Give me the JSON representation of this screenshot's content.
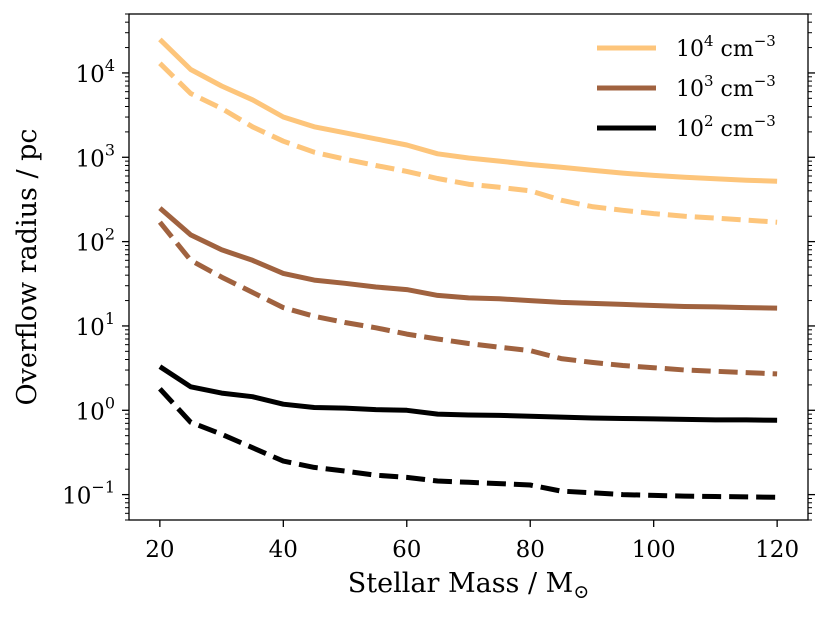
{
  "chart_data": {
    "type": "line",
    "title": "",
    "xlabel": "Stellar Mass / M",
    "xlabel_sub": "⊙",
    "ylabel": "Overflow radius / pc",
    "yscale": "log",
    "xlim": [
      15,
      125
    ],
    "ylim": [
      0.05,
      50000
    ],
    "xticks": [
      20,
      40,
      60,
      80,
      100,
      120
    ],
    "xtick_labels": [
      "20",
      "40",
      "60",
      "80",
      "100",
      "120"
    ],
    "yticks": [
      {
        "value": 0.1,
        "base": "10",
        "exp": "−1"
      },
      {
        "value": 1,
        "base": "10",
        "exp": "0"
      },
      {
        "value": 10,
        "base": "10",
        "exp": "1"
      },
      {
        "value": 100,
        "base": "10",
        "exp": "2"
      },
      {
        "value": 1000,
        "base": "10",
        "exp": "3"
      },
      {
        "value": 10000,
        "base": "10",
        "exp": "4"
      }
    ],
    "legend_position": "top-right",
    "x": [
      20,
      25,
      30,
      35,
      40,
      45,
      50,
      55,
      60,
      65,
      70,
      75,
      80,
      85,
      90,
      95,
      100,
      105,
      110,
      115,
      120
    ],
    "series": [
      {
        "name": "10^4 cm^-3 (solid)",
        "color": "#fdc57b",
        "dash": false,
        "values": [
          25000,
          11000,
          7000,
          4800,
          3000,
          2300,
          1950,
          1650,
          1400,
          1100,
          980,
          900,
          820,
          760,
          700,
          650,
          610,
          580,
          555,
          535,
          520
        ]
      },
      {
        "name": "10^4 cm^-3 (dashed)",
        "color": "#fdc57b",
        "dash": true,
        "values": [
          13000,
          5700,
          3800,
          2300,
          1550,
          1150,
          950,
          800,
          680,
          560,
          480,
          440,
          400,
          310,
          260,
          235,
          215,
          200,
          190,
          180,
          170
        ]
      },
      {
        "name": "10^3 cm^-3 (solid)",
        "color": "#a0623f",
        "dash": false,
        "values": [
          250,
          120,
          80,
          60,
          42,
          35,
          32,
          29,
          27,
          23,
          21.5,
          21,
          20,
          19,
          18.5,
          18,
          17.5,
          17,
          16.8,
          16.5,
          16.3
        ]
      },
      {
        "name": "10^3 cm^-3 (dashed)",
        "color": "#a0623f",
        "dash": true,
        "values": [
          170,
          60,
          38,
          25,
          16.5,
          13,
          11,
          9.5,
          8,
          7,
          6.2,
          5.6,
          5.1,
          4.1,
          3.7,
          3.4,
          3.2,
          3.0,
          2.9,
          2.8,
          2.7
        ]
      },
      {
        "name": "10^2 cm^-3 (solid)",
        "color": "#000000",
        "dash": false,
        "values": [
          3.3,
          1.9,
          1.6,
          1.45,
          1.18,
          1.08,
          1.06,
          1.02,
          1.0,
          0.9,
          0.88,
          0.87,
          0.85,
          0.83,
          0.81,
          0.8,
          0.79,
          0.78,
          0.77,
          0.77,
          0.76
        ]
      },
      {
        "name": "10^2 cm^-3 (dashed)",
        "color": "#000000",
        "dash": true,
        "values": [
          1.8,
          0.72,
          0.52,
          0.36,
          0.25,
          0.21,
          0.19,
          0.17,
          0.16,
          0.145,
          0.14,
          0.135,
          0.13,
          0.11,
          0.105,
          0.1,
          0.098,
          0.096,
          0.095,
          0.094,
          0.093
        ]
      }
    ],
    "legend": [
      {
        "base": "10",
        "exp": "4",
        "unit": " cm",
        "unit_exp": "−3",
        "color": "#fdc57b"
      },
      {
        "base": "10",
        "exp": "3",
        "unit": " cm",
        "unit_exp": "−3",
        "color": "#a0623f"
      },
      {
        "base": "10",
        "exp": "2",
        "unit": " cm",
        "unit_exp": "−3",
        "color": "#000000"
      }
    ]
  }
}
